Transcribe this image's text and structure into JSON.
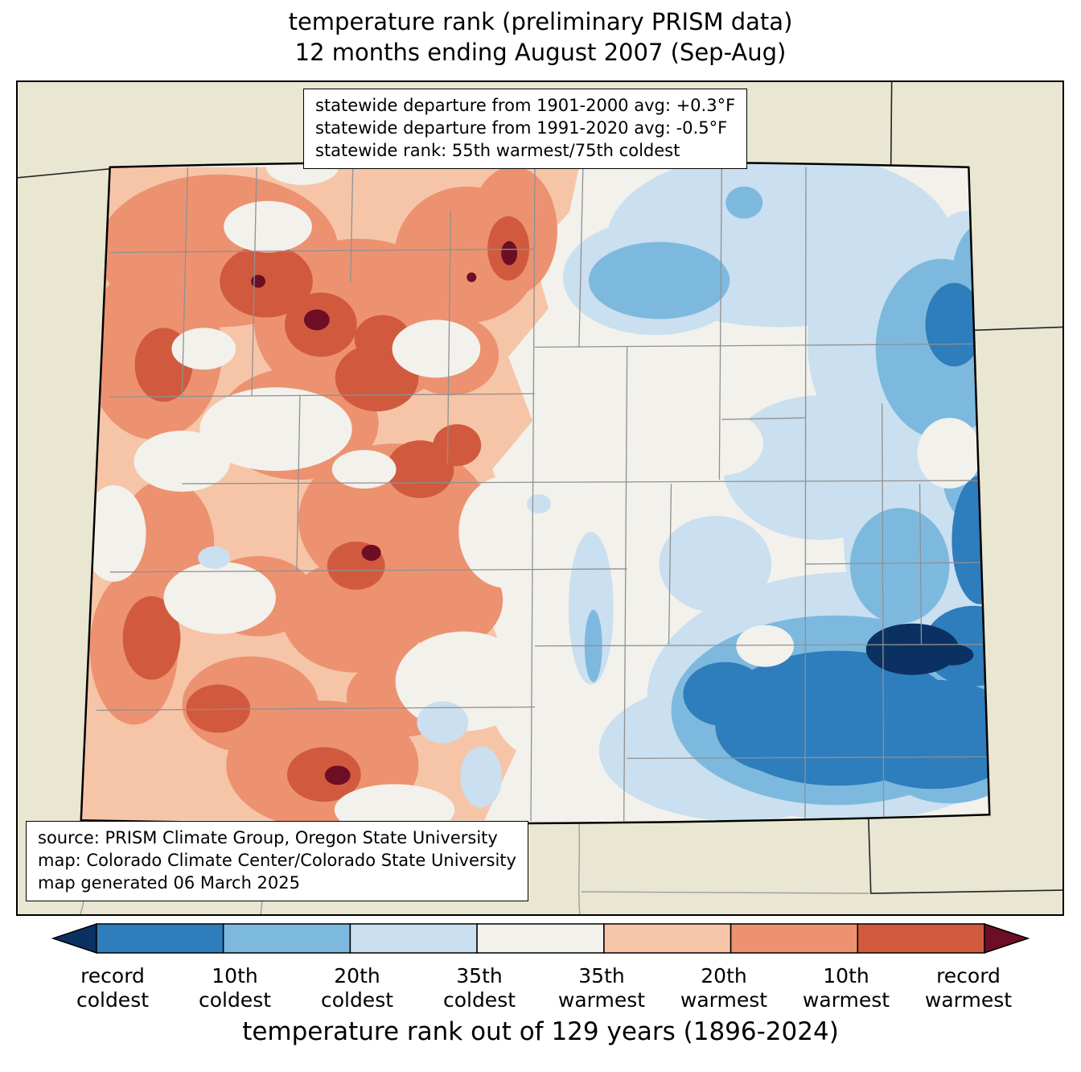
{
  "title": {
    "line1": "temperature rank (preliminary PRISM data)",
    "line2": "12 months ending August 2007 (Sep-Aug)"
  },
  "stats_box": {
    "line1": "statewide departure from 1901-2000 avg: +0.3°F",
    "line2": "statewide departure from 1991-2020 avg: -0.5°F",
    "line3": "statewide rank: 55th warmest/75th coldest"
  },
  "source_box": {
    "line1": "source: PRISM Climate Group, Oregon State University",
    "line2": "map: Colorado Climate Center/Colorado State University",
    "line3": "map generated 06 March 2025"
  },
  "map": {
    "region": "Colorado",
    "background_color": "#e9e6d2",
    "county_line_color": "#909090",
    "state_border_color": "#000000"
  },
  "legend": {
    "colors": [
      "#0a3161",
      "#2e7dbc",
      "#7db9de",
      "#cadfef",
      "#f2f1ec",
      "#f6c5a8",
      "#ec9270",
      "#d15a3e",
      "#6d0e24"
    ],
    "bins": [
      "record coldest",
      "10th coldest",
      "20th coldest",
      "35th coldest",
      "middle",
      "35th warmest",
      "20th warmest",
      "10th warmest",
      "record warmest"
    ],
    "labels": [
      {
        "top": "record",
        "bottom": "coldest"
      },
      {
        "top": "10th",
        "bottom": "coldest"
      },
      {
        "top": "20th",
        "bottom": "coldest"
      },
      {
        "top": "35th",
        "bottom": "coldest"
      },
      {
        "top": "35th",
        "bottom": "warmest"
      },
      {
        "top": "20th",
        "bottom": "warmest"
      },
      {
        "top": "10th",
        "bottom": "warmest"
      },
      {
        "top": "record",
        "bottom": "warmest"
      }
    ],
    "caption": "temperature rank out of 129 years (1896-2024)"
  }
}
